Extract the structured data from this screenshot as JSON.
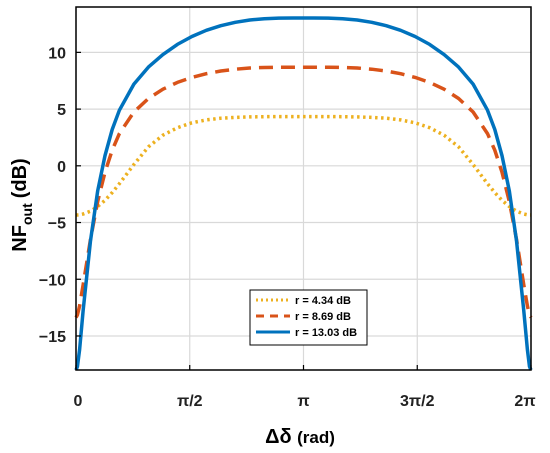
{
  "chart_data": {
    "type": "line",
    "title": "",
    "xlabel": {
      "main": "Δδ",
      "unit": "(rad)"
    },
    "ylabel": {
      "main": "NF",
      "sub": "out",
      "unit": "(dB)"
    },
    "xlim": [
      0,
      6.283185
    ],
    "ylim": [
      -18,
      14
    ],
    "grid": true,
    "legend_placement": "bottom-center",
    "x_ticks": [
      {
        "value": 0,
        "label": "0"
      },
      {
        "value": 1.570796,
        "label": "π/2"
      },
      {
        "value": 3.141593,
        "label": "π"
      },
      {
        "value": 4.712389,
        "label": "3π/2"
      },
      {
        "value": 6.283185,
        "label": "2π"
      }
    ],
    "y_ticks": [
      {
        "value": -15,
        "label": "−15"
      },
      {
        "value": -10,
        "label": "−10"
      },
      {
        "value": -5,
        "label": "−5"
      },
      {
        "value": 0,
        "label": "0"
      },
      {
        "value": 5,
        "label": "5"
      },
      {
        "value": 10,
        "label": "10"
      }
    ],
    "x": [
      0,
      0.02,
      0.05,
      0.1,
      0.2,
      0.3,
      0.4,
      0.5,
      0.6,
      0.8,
      1.0,
      1.2,
      1.4,
      1.6,
      1.8,
      2.0,
      2.2,
      2.4,
      2.6,
      2.8,
      3.0,
      3.141593,
      3.283,
      3.483,
      3.683,
      3.883,
      4.083,
      4.283,
      4.483,
      4.683,
      4.883,
      5.083,
      5.283,
      5.483,
      5.683,
      5.783,
      5.883,
      5.983,
      6.083,
      6.183,
      6.233,
      6.263,
      6.283185
    ],
    "series": [
      {
        "name": "r = 4.34 dB",
        "color": "#EDB120",
        "style": "dotted",
        "values": [
          -4.34,
          -4.34,
          -4.32,
          -4.25,
          -4.0,
          -3.59,
          -3.04,
          -2.36,
          -1.58,
          0.12,
          1.67,
          2.7,
          3.36,
          3.79,
          4.05,
          4.2,
          4.27,
          4.31,
          4.33,
          4.34,
          4.34,
          4.34,
          4.34,
          4.34,
          4.33,
          4.31,
          4.27,
          4.2,
          4.05,
          3.79,
          3.36,
          2.7,
          1.67,
          0.12,
          -1.58,
          -2.36,
          -3.04,
          -3.59,
          -4.0,
          -4.25,
          -4.32,
          -4.34,
          -4.34
        ]
      },
      {
        "name": "r = 8.69 dB",
        "color": "#D95319",
        "style": "dashed",
        "values": [
          -13.37,
          -13.15,
          -12.35,
          -10.45,
          -6.48,
          -3.14,
          -0.56,
          1.38,
          2.84,
          4.74,
          5.93,
          6.75,
          7.35,
          7.79,
          8.12,
          8.36,
          8.52,
          8.62,
          8.67,
          8.69,
          8.69,
          8.69,
          8.69,
          8.69,
          8.67,
          8.62,
          8.52,
          8.36,
          8.12,
          7.79,
          7.35,
          6.75,
          5.93,
          4.74,
          2.84,
          1.38,
          -0.56,
          -3.14,
          -6.48,
          -10.45,
          -12.35,
          -13.15,
          -13.37
        ]
      },
      {
        "name": "r = 13.03 dB",
        "color": "#0072BD",
        "style": "solid",
        "values": [
          -18.0,
          -17.7,
          -16.2,
          -12.7,
          -6.6,
          -2.2,
          0.9,
          3.2,
          4.9,
          7.2,
          8.7,
          9.8,
          10.7,
          11.4,
          11.95,
          12.35,
          12.65,
          12.85,
          12.97,
          13.02,
          13.03,
          13.03,
          13.03,
          13.02,
          12.97,
          12.85,
          12.65,
          12.35,
          11.95,
          11.4,
          10.7,
          9.8,
          8.7,
          7.2,
          4.9,
          3.2,
          0.9,
          -2.2,
          -6.6,
          -12.7,
          -16.2,
          -17.7,
          -18.0
        ]
      }
    ]
  }
}
